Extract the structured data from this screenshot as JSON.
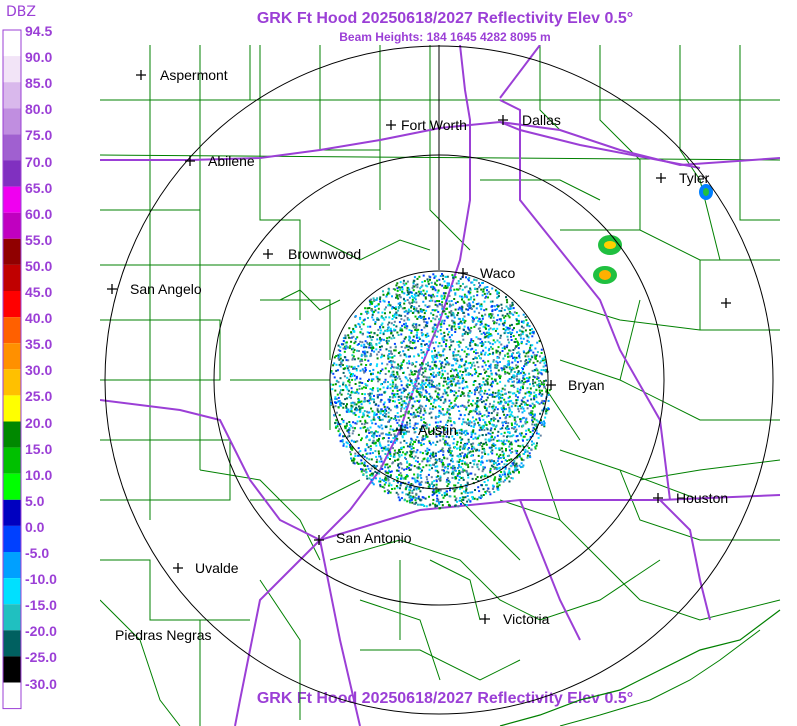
{
  "title": "GRK Ft Hood 20250618/2027 Reflectivity Elev 0.5°",
  "subtitle": "Beam Heights: 184 1645 4282 8095 m",
  "legend": {
    "unit": "DBZ",
    "labels": [
      "94.5",
      "90.0",
      "85.0",
      "80.0",
      "75.0",
      "70.0",
      "65.0",
      "60.0",
      "55.0",
      "50.0",
      "45.0",
      "40.0",
      "35.0",
      "30.0",
      "25.0",
      "20.0",
      "15.0",
      "10.0",
      "5.0",
      "0.0",
      "-5.0",
      "-10.0",
      "-15.0",
      "-20.0",
      "-25.0",
      "-30.0"
    ],
    "colors": [
      "#ffffff",
      "#f2e4f7",
      "#d9b8ec",
      "#c08ee0",
      "#a060d0",
      "#8030c0",
      "#f000f0",
      "#c000c0",
      "#900000",
      "#c00000",
      "#ff0000",
      "#ff6000",
      "#ff9000",
      "#ffc000",
      "#ffff00",
      "#008800",
      "#00c000",
      "#00ff00",
      "#0000c0",
      "#0040ff",
      "#00a0ff",
      "#00e0ff",
      "#20c0c0",
      "#006060",
      "#000000",
      "#ffffff"
    ]
  },
  "map": {
    "colors": {
      "county_lines": "#008000",
      "highways": "#9b3fd6",
      "range_rings": "#000000",
      "background": "#ffffff"
    },
    "cities": [
      {
        "name": "Aspermont",
        "icon": "plus-marker"
      },
      {
        "name": "Fort Worth",
        "icon": "plus-marker"
      },
      {
        "name": "Dallas",
        "icon": "plus-marker"
      },
      {
        "name": "Abilene",
        "icon": "plus-marker"
      },
      {
        "name": "Tyler",
        "icon": "plus-marker"
      },
      {
        "name": "Brownwood",
        "icon": "plus-marker"
      },
      {
        "name": "Waco",
        "icon": "plus-marker"
      },
      {
        "name": "San Angelo",
        "icon": "plus-marker"
      },
      {
        "name": "Bryan",
        "icon": "plus-marker"
      },
      {
        "name": "Austin",
        "icon": "plus-marker"
      },
      {
        "name": "Houston",
        "icon": "plus-marker"
      },
      {
        "name": "San Antonio",
        "icon": "plus-marker"
      },
      {
        "name": "Uvalde",
        "icon": "plus-marker"
      },
      {
        "name": "Victoria",
        "icon": "plus-marker"
      },
      {
        "name": "Piedras Negras",
        "icon": "none"
      },
      {
        "name": "",
        "icon": "plus-marker"
      }
    ]
  }
}
